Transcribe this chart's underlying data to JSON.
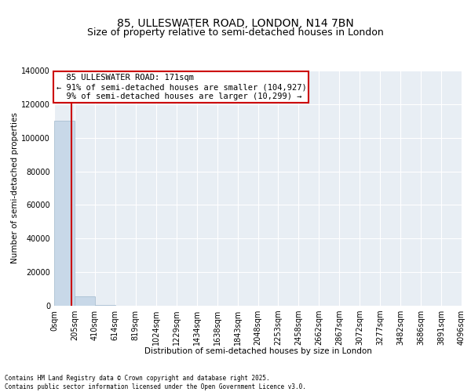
{
  "title_line1": "85, ULLESWATER ROAD, LONDON, N14 7BN",
  "title_line2": "Size of property relative to semi-detached houses in London",
  "xlabel": "Distribution of semi-detached houses by size in London",
  "ylabel": "Number of semi-detached properties",
  "property_size": 171,
  "property_label": "85 ULLESWATER ROAD: 171sqm",
  "pct_smaller": 91,
  "count_smaller": 104927,
  "pct_larger": 9,
  "count_larger": 10299,
  "bin_edges": [
    0,
    205,
    410,
    614,
    819,
    1024,
    1229,
    1434,
    1638,
    1843,
    2048,
    2253,
    2458,
    2662,
    2867,
    3072,
    3277,
    3482,
    3686,
    3891,
    4096
  ],
  "bar_heights": [
    110000,
    5500,
    700,
    200,
    80,
    40,
    20,
    15,
    10,
    8,
    6,
    5,
    4,
    3,
    3,
    2,
    2,
    1,
    1,
    1
  ],
  "bar_color": "#c8d8e8",
  "bar_edge_color": "#a0b8cc",
  "line_color": "#cc0000",
  "annotation_box_color": "#cc0000",
  "background_color": "#e8eef4",
  "ylim": [
    0,
    140000
  ],
  "yticks": [
    0,
    20000,
    40000,
    60000,
    80000,
    100000,
    120000,
    140000
  ],
  "footer_text": "Contains HM Land Registry data © Crown copyright and database right 2025.\nContains public sector information licensed under the Open Government Licence v3.0.",
  "title_fontsize": 10,
  "subtitle_fontsize": 9,
  "axis_label_fontsize": 7.5,
  "tick_fontsize": 7,
  "annotation_fontsize": 7.5
}
